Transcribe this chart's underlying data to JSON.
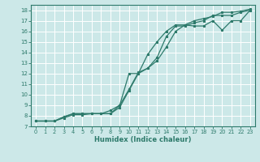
{
  "title": "",
  "xlabel": "Humidex (Indice chaleur)",
  "ylabel": "",
  "background_color": "#cce8e8",
  "grid_color": "#ffffff",
  "line_color": "#2d7a6b",
  "xlim": [
    -0.5,
    23.5
  ],
  "ylim": [
    7,
    18.5
  ],
  "xticks": [
    0,
    1,
    2,
    3,
    4,
    5,
    6,
    7,
    8,
    9,
    10,
    11,
    12,
    13,
    14,
    15,
    16,
    17,
    18,
    19,
    20,
    21,
    22,
    23
  ],
  "yticks": [
    7,
    8,
    9,
    10,
    11,
    12,
    13,
    14,
    15,
    16,
    17,
    18
  ],
  "line1_x": [
    0,
    1,
    2,
    3,
    4,
    5,
    6,
    7,
    8,
    9,
    10,
    11,
    12,
    13,
    14,
    15,
    16,
    17,
    18,
    19,
    20,
    21,
    22,
    23
  ],
  "line1_y": [
    7.5,
    7.5,
    7.5,
    7.9,
    8.2,
    8.2,
    8.2,
    8.2,
    8.2,
    8.8,
    10.4,
    12.0,
    13.8,
    15.0,
    16.0,
    16.6,
    16.6,
    16.5,
    16.5,
    17.0,
    16.1,
    17.0,
    17.0,
    18.0
  ],
  "line2_x": [
    0,
    1,
    2,
    3,
    4,
    5,
    6,
    7,
    8,
    9,
    10,
    11,
    12,
    13,
    14,
    15,
    16,
    17,
    18,
    19,
    20,
    21,
    22,
    23
  ],
  "line2_y": [
    7.5,
    7.5,
    7.5,
    7.9,
    8.2,
    8.2,
    8.2,
    8.2,
    8.2,
    9.0,
    12.0,
    12.0,
    12.5,
    13.5,
    15.5,
    16.5,
    16.5,
    16.8,
    17.0,
    17.5,
    17.5,
    17.5,
    17.8,
    18.0
  ],
  "line3_x": [
    0,
    1,
    2,
    3,
    4,
    5,
    6,
    7,
    8,
    9,
    10,
    11,
    12,
    13,
    14,
    15,
    16,
    17,
    18,
    19,
    20,
    21,
    22,
    23
  ],
  "line3_y": [
    7.5,
    7.5,
    7.5,
    7.8,
    8.1,
    8.1,
    8.2,
    8.2,
    8.5,
    9.0,
    10.5,
    12.1,
    12.5,
    13.2,
    14.5,
    16.0,
    16.6,
    17.0,
    17.2,
    17.4,
    17.8,
    17.8,
    17.9,
    18.1
  ]
}
